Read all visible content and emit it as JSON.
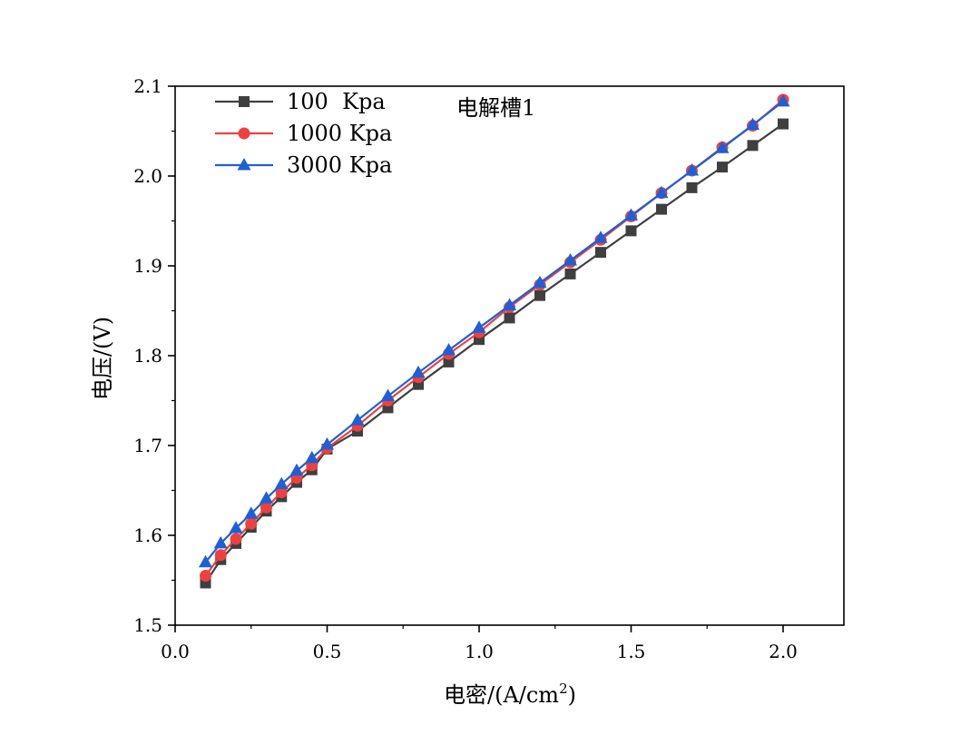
{
  "chart_data": {
    "type": "line",
    "annotation": "电解槽1",
    "xlabel_main": "电密/(A/cm",
    "xlabel_sup": "2",
    "xlabel_close": ")",
    "ylabel": "电压/(V)",
    "xlim": [
      0.0,
      2.2
    ],
    "ylim": [
      1.5,
      2.1
    ],
    "x_ticks": [
      0.0,
      0.5,
      1.0,
      1.5,
      2.0
    ],
    "x_tick_labels": [
      "0.0",
      "0.5",
      "1.0",
      "1.5",
      "2.0"
    ],
    "y_ticks": [
      1.5,
      1.6,
      1.7,
      1.8,
      1.9,
      2.0,
      2.1
    ],
    "y_tick_labels": [
      "1.5",
      "1.6",
      "1.7",
      "1.8",
      "1.9",
      "2.0",
      "2.1"
    ],
    "grid": false,
    "legend_position": "top-left",
    "series": [
      {
        "name": "100  Kpa",
        "color": "#3f3f3f",
        "marker": "square",
        "x": [
          0.1,
          0.15,
          0.2,
          0.25,
          0.3,
          0.35,
          0.4,
          0.45,
          0.5,
          0.6,
          0.7,
          0.8,
          0.9,
          1.0,
          1.1,
          1.2,
          1.3,
          1.4,
          1.5,
          1.6,
          1.7,
          1.8,
          1.9,
          2.0
        ],
        "y": [
          1.547,
          1.573,
          1.591,
          1.609,
          1.627,
          1.643,
          1.659,
          1.673,
          1.696,
          1.716,
          1.742,
          1.768,
          1.793,
          1.818,
          1.842,
          1.867,
          1.891,
          1.915,
          1.939,
          1.963,
          1.987,
          2.01,
          2.034,
          2.058
        ]
      },
      {
        "name": "1000 Kpa",
        "color": "#ee4040",
        "marker": "circle",
        "x": [
          0.1,
          0.15,
          0.2,
          0.25,
          0.3,
          0.35,
          0.4,
          0.45,
          0.5,
          0.6,
          0.7,
          0.8,
          0.9,
          1.0,
          1.1,
          1.2,
          1.3,
          1.4,
          1.5,
          1.6,
          1.7,
          1.8,
          1.9,
          2.0
        ],
        "y": [
          1.555,
          1.578,
          1.596,
          1.613,
          1.631,
          1.648,
          1.664,
          1.678,
          1.697,
          1.722,
          1.75,
          1.776,
          1.802,
          1.826,
          1.854,
          1.879,
          1.904,
          1.929,
          1.955,
          1.981,
          2.006,
          2.032,
          2.056,
          2.085
        ]
      },
      {
        "name": "3000 Kpa",
        "color": "#1f5fd6",
        "marker": "triangle",
        "x": [
          0.1,
          0.15,
          0.2,
          0.25,
          0.3,
          0.35,
          0.4,
          0.45,
          0.5,
          0.6,
          0.7,
          0.8,
          0.9,
          1.0,
          1.1,
          1.2,
          1.3,
          1.4,
          1.5,
          1.6,
          1.7,
          1.8,
          1.9,
          2.0
        ],
        "y": [
          1.57,
          1.591,
          1.608,
          1.624,
          1.641,
          1.657,
          1.672,
          1.686,
          1.701,
          1.728,
          1.755,
          1.781,
          1.806,
          1.831,
          1.856,
          1.881,
          1.906,
          1.931,
          1.956,
          1.981,
          2.006,
          2.031,
          2.057,
          2.083
        ]
      }
    ]
  }
}
